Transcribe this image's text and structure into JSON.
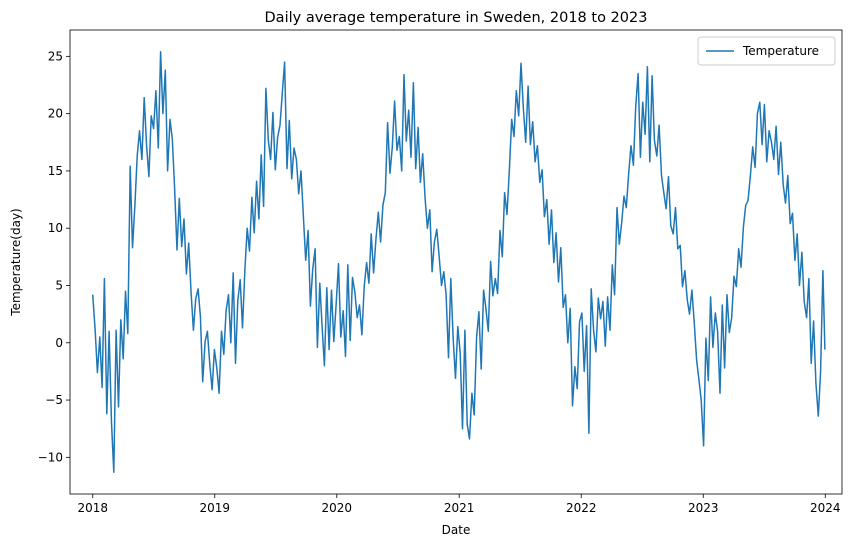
{
  "chart_data": {
    "type": "line",
    "title": "Daily average temperature in Sweden, 2018 to 2023",
    "xlabel": "Date",
    "ylabel": "Temperature(day)",
    "xlim": [
      "2017-10-25",
      "2024-02-20"
    ],
    "ylim": [
      -13.2,
      27.3
    ],
    "x_ticks": [
      "2018",
      "2019",
      "2020",
      "2021",
      "2022",
      "2023",
      "2024"
    ],
    "y_ticks": [
      -10,
      -5,
      0,
      5,
      10,
      15,
      20,
      25
    ],
    "grid": false,
    "legend": {
      "placement": "top-right",
      "entries": [
        "Temperature"
      ]
    },
    "color": "#1f77b4",
    "series": [
      {
        "name": "Temperature",
        "x": [
          "2018-01-01",
          "2018-01-08",
          "2018-01-15",
          "2018-01-22",
          "2018-01-29",
          "2018-02-05",
          "2018-02-12",
          "2018-02-19",
          "2018-02-26",
          "2018-03-05",
          "2018-03-12",
          "2018-03-19",
          "2018-03-26",
          "2018-04-02",
          "2018-04-09",
          "2018-04-16",
          "2018-04-23",
          "2018-04-30",
          "2018-05-07",
          "2018-05-14",
          "2018-05-21",
          "2018-05-28",
          "2018-06-04",
          "2018-06-11",
          "2018-06-18",
          "2018-06-25",
          "2018-07-02",
          "2018-07-09",
          "2018-07-16",
          "2018-07-23",
          "2018-07-30",
          "2018-08-06",
          "2018-08-13",
          "2018-08-20",
          "2018-08-27",
          "2018-09-03",
          "2018-09-10",
          "2018-09-17",
          "2018-09-24",
          "2018-10-01",
          "2018-10-08",
          "2018-10-15",
          "2018-10-22",
          "2018-10-29",
          "2018-11-05",
          "2018-11-12",
          "2018-11-19",
          "2018-11-26",
          "2018-12-03",
          "2018-12-10",
          "2018-12-17",
          "2018-12-24",
          "2018-12-31",
          "2019-01-07",
          "2019-01-14",
          "2019-01-21",
          "2019-01-28",
          "2019-02-04",
          "2019-02-11",
          "2019-02-18",
          "2019-02-25",
          "2019-03-04",
          "2019-03-11",
          "2019-03-18",
          "2019-03-25",
          "2019-04-01",
          "2019-04-08",
          "2019-04-15",
          "2019-04-22",
          "2019-04-29",
          "2019-05-06",
          "2019-05-13",
          "2019-05-20",
          "2019-05-27",
          "2019-06-03",
          "2019-06-10",
          "2019-06-17",
          "2019-06-24",
          "2019-07-01",
          "2019-07-08",
          "2019-07-15",
          "2019-07-22",
          "2019-07-29",
          "2019-08-05",
          "2019-08-12",
          "2019-08-19",
          "2019-08-26",
          "2019-09-02",
          "2019-09-09",
          "2019-09-16",
          "2019-09-23",
          "2019-09-30",
          "2019-10-07",
          "2019-10-14",
          "2019-10-21",
          "2019-10-28",
          "2019-11-04",
          "2019-11-11",
          "2019-11-18",
          "2019-11-25",
          "2019-12-02",
          "2019-12-09",
          "2019-12-16",
          "2019-12-23",
          "2019-12-30",
          "2020-01-06",
          "2020-01-13",
          "2020-01-20",
          "2020-01-27",
          "2020-02-03",
          "2020-02-10",
          "2020-02-17",
          "2020-02-24",
          "2020-03-02",
          "2020-03-09",
          "2020-03-16",
          "2020-03-23",
          "2020-03-30",
          "2020-04-06",
          "2020-04-13",
          "2020-04-20",
          "2020-04-27",
          "2020-05-04",
          "2020-05-11",
          "2020-05-18",
          "2020-05-25",
          "2020-06-01",
          "2020-06-08",
          "2020-06-15",
          "2020-06-22",
          "2020-06-29",
          "2020-07-06",
          "2020-07-13",
          "2020-07-20",
          "2020-07-27",
          "2020-08-03",
          "2020-08-10",
          "2020-08-17",
          "2020-08-24",
          "2020-08-31",
          "2020-09-07",
          "2020-09-14",
          "2020-09-21",
          "2020-09-28",
          "2020-10-05",
          "2020-10-12",
          "2020-10-19",
          "2020-10-26",
          "2020-11-02",
          "2020-11-09",
          "2020-11-16",
          "2020-11-23",
          "2020-11-30",
          "2020-12-07",
          "2020-12-14",
          "2020-12-21",
          "2020-12-28",
          "2021-01-04",
          "2021-01-11",
          "2021-01-18",
          "2021-01-25",
          "2021-02-01",
          "2021-02-08",
          "2021-02-15",
          "2021-02-22",
          "2021-03-01",
          "2021-03-08",
          "2021-03-15",
          "2021-03-22",
          "2021-03-29",
          "2021-04-05",
          "2021-04-12",
          "2021-04-19",
          "2021-04-26",
          "2021-05-03",
          "2021-05-10",
          "2021-05-17",
          "2021-05-24",
          "2021-05-31",
          "2021-06-07",
          "2021-06-14",
          "2021-06-21",
          "2021-06-28",
          "2021-07-05",
          "2021-07-12",
          "2021-07-19",
          "2021-07-26",
          "2021-08-02",
          "2021-08-09",
          "2021-08-16",
          "2021-08-23",
          "2021-08-30",
          "2021-09-06",
          "2021-09-13",
          "2021-09-20",
          "2021-09-27",
          "2021-10-04",
          "2021-10-11",
          "2021-10-18",
          "2021-10-25",
          "2021-11-01",
          "2021-11-08",
          "2021-11-15",
          "2021-11-22",
          "2021-11-29",
          "2021-12-06",
          "2021-12-13",
          "2021-12-20",
          "2021-12-27",
          "2022-01-03",
          "2022-01-10",
          "2022-01-17",
          "2022-01-24",
          "2022-01-31",
          "2022-02-07",
          "2022-02-14",
          "2022-02-21",
          "2022-02-28",
          "2022-03-07",
          "2022-03-14",
          "2022-03-21",
          "2022-03-28",
          "2022-04-04",
          "2022-04-11",
          "2022-04-18",
          "2022-04-25",
          "2022-05-02",
          "2022-05-09",
          "2022-05-16",
          "2022-05-23",
          "2022-05-30",
          "2022-06-06",
          "2022-06-13",
          "2022-06-20",
          "2022-06-27",
          "2022-07-04",
          "2022-07-11",
          "2022-07-18",
          "2022-07-25",
          "2022-08-01",
          "2022-08-08",
          "2022-08-15",
          "2022-08-22",
          "2022-08-29",
          "2022-09-05",
          "2022-09-12",
          "2022-09-19",
          "2022-09-26",
          "2022-10-03",
          "2022-10-10",
          "2022-10-17",
          "2022-10-24",
          "2022-10-31",
          "2022-11-07",
          "2022-11-14",
          "2022-11-21",
          "2022-11-28",
          "2022-12-05",
          "2022-12-12",
          "2022-12-19",
          "2022-12-26",
          "2023-01-02",
          "2023-01-09",
          "2023-01-16",
          "2023-01-23",
          "2023-01-30",
          "2023-02-06",
          "2023-02-13",
          "2023-02-20",
          "2023-02-27",
          "2023-03-06",
          "2023-03-13",
          "2023-03-20",
          "2023-03-27",
          "2023-04-03",
          "2023-04-10",
          "2023-04-17",
          "2023-04-24",
          "2023-05-01",
          "2023-05-08",
          "2023-05-15",
          "2023-05-22",
          "2023-05-29",
          "2023-06-05",
          "2023-06-12",
          "2023-06-19",
          "2023-06-26",
          "2023-07-03",
          "2023-07-10",
          "2023-07-17",
          "2023-07-24",
          "2023-07-31",
          "2023-08-07",
          "2023-08-14",
          "2023-08-21",
          "2023-08-28",
          "2023-09-04",
          "2023-09-11",
          "2023-09-18",
          "2023-09-25",
          "2023-10-02",
          "2023-10-09",
          "2023-10-16",
          "2023-10-23",
          "2023-10-30",
          "2023-11-06",
          "2023-11-13",
          "2023-11-20",
          "2023-11-27",
          "2023-12-04",
          "2023-12-11",
          "2023-12-18",
          "2023-12-25",
          "2023-12-31"
        ],
        "y": [
          4.2,
          1.2,
          -2.6,
          0.5,
          -3.9,
          5.6,
          -6.2,
          1.0,
          -7.0,
          -11.3,
          1.1,
          -5.6,
          2.0,
          -1.4,
          4.5,
          0.8,
          15.4,
          8.3,
          12.0,
          16.3,
          18.5,
          16.0,
          21.4,
          17.2,
          14.5,
          19.8,
          18.7,
          22.0,
          17.0,
          25.4,
          20.0,
          23.8,
          15.0,
          19.5,
          17.8,
          13.5,
          8.1,
          12.6,
          8.4,
          10.8,
          6.0,
          8.7,
          4.5,
          1.1,
          3.8,
          4.7,
          2.3,
          -3.4,
          0.1,
          1.0,
          -1.9,
          -4.1,
          -0.6,
          -2.2,
          -4.4,
          1.0,
          -1.0,
          2.8,
          4.2,
          0.0,
          6.1,
          -1.8,
          3.7,
          5.5,
          1.3,
          6.4,
          10.0,
          8.0,
          12.7,
          9.6,
          14.1,
          10.8,
          16.4,
          11.9,
          22.2,
          17.7,
          16.0,
          20.1,
          15.1,
          17.9,
          19.0,
          21.8,
          24.5,
          15.2,
          19.4,
          14.3,
          17.0,
          16.0,
          13.0,
          15.0,
          11.0,
          7.2,
          9.8,
          3.2,
          6.4,
          8.2,
          -0.4,
          5.2,
          1.4,
          -2.0,
          4.8,
          -0.6,
          4.6,
          0.1,
          3.3,
          6.9,
          0.5,
          2.8,
          -1.2,
          6.8,
          0.2,
          5.7,
          4.4,
          2.2,
          3.3,
          0.7,
          4.9,
          7.0,
          5.2,
          9.5,
          6.1,
          9.0,
          11.4,
          8.8,
          12.0,
          13.1,
          19.2,
          14.8,
          17.1,
          21.1,
          16.8,
          18.0,
          15.0,
          23.4,
          17.6,
          20.3,
          16.2,
          22.7,
          15.2,
          18.8,
          14.0,
          16.5,
          12.6,
          10.0,
          11.6,
          6.2,
          8.8,
          9.9,
          7.6,
          5.0,
          6.2,
          4.2,
          -1.3,
          5.6,
          0.3,
          -3.1,
          1.4,
          -0.9,
          -7.5,
          1.1,
          -7.1,
          -8.4,
          -4.4,
          -6.3,
          0.5,
          2.7,
          -2.3,
          4.6,
          3.0,
          1.0,
          7.1,
          4.1,
          5.6,
          4.3,
          9.8,
          7.5,
          13.1,
          11.2,
          15.0,
          19.5,
          18.0,
          22.0,
          19.8,
          24.4,
          20.4,
          17.5,
          22.4,
          17.3,
          19.3,
          15.8,
          17.2,
          14.0,
          15.1,
          11.0,
          12.5,
          8.6,
          11.6,
          7.0,
          9.6,
          5.3,
          8.3,
          3.1,
          4.2,
          0.0,
          3.0,
          -5.5,
          -2.1,
          -4.0,
          1.8,
          2.6,
          -2.5,
          1.5,
          -7.9,
          4.7,
          1.1,
          -0.8,
          3.9,
          2.1,
          3.6,
          -0.3,
          4.0,
          1.1,
          6.8,
          4.2,
          11.8,
          8.6,
          10.5,
          12.8,
          11.8,
          14.8,
          17.2,
          15.5,
          20.6,
          23.5,
          16.2,
          21.0,
          18.2,
          24.1,
          15.8,
          23.3,
          17.7,
          16.3,
          19.0,
          14.6,
          13.1,
          11.7,
          14.5,
          10.2,
          9.5,
          11.8,
          8.2,
          8.5,
          4.9,
          6.3,
          3.8,
          2.5,
          4.6,
          1.8,
          -1.5,
          -3.2,
          -5.0,
          -9.0,
          0.4,
          -3.3,
          4.0,
          -0.4,
          2.6,
          1.0,
          -4.4,
          3.3,
          -2.2,
          4.2,
          0.9,
          2.2,
          5.8,
          4.9,
          8.2,
          6.6,
          10.1,
          12.0,
          12.4,
          14.6,
          17.1,
          15.3,
          20.0,
          21.0,
          17.3,
          20.8,
          15.8,
          18.5,
          17.5,
          16.0,
          18.9,
          14.7,
          17.5,
          13.8,
          12.2,
          14.6,
          10.4,
          11.3,
          7.2,
          9.5,
          5.0,
          7.9,
          3.6,
          2.2,
          5.6,
          -1.8,
          1.9,
          -3.5,
          -6.4,
          -2.5,
          6.3,
          -0.6
        ]
      }
    ]
  }
}
